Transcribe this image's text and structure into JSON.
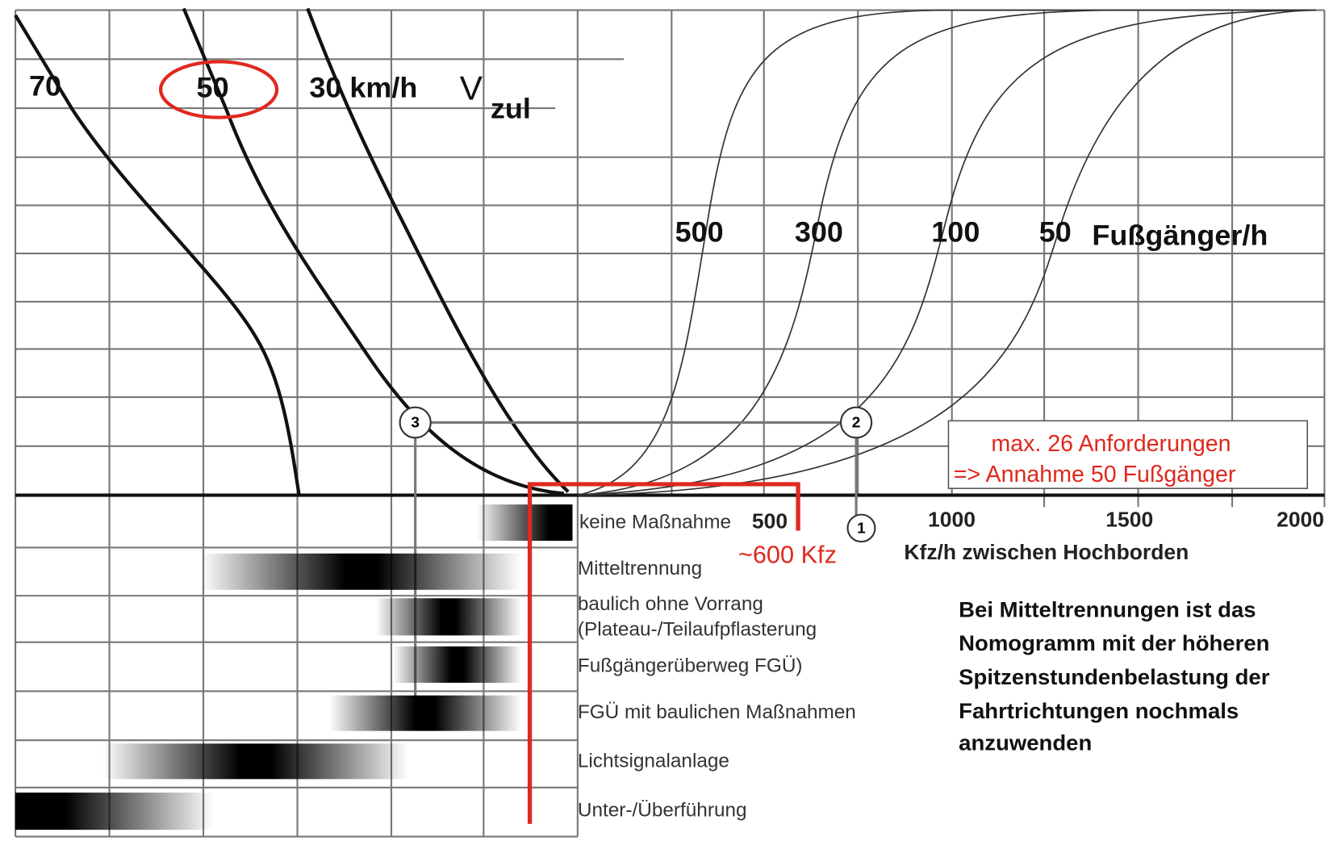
{
  "speed_curves": {
    "labels": [
      "70",
      "50",
      "30 km/h"
    ],
    "v_symbol": "V",
    "v_subscript": "zul"
  },
  "pedestrian_curves": {
    "labels": [
      "500",
      "300",
      "100",
      "50"
    ],
    "unit": "Fußgänger/h"
  },
  "annotation": [
    "max. 26 Anforderungen",
    "=> Annahme 50 Fußgänger"
  ],
  "x_axis": {
    "ticks": [
      "500",
      "1000",
      "1500",
      "2000"
    ],
    "label": "Kfz/h zwischen Hochborden"
  },
  "marker": "~600 Kfz",
  "points": [
    "1",
    "2",
    "3"
  ],
  "measures": [
    "keine Maßnahme",
    "Mitteltrennung",
    "baulich ohne Vorrang",
    "(Plateau-/Teilaufpflasterung",
    "Fußgängerüberweg FGÜ)",
    "FGÜ mit baulichen Maßnahmen",
    "Lichtsignalanlage",
    "Unter-/Überführung"
  ],
  "note": [
    "Bei Mitteltrennungen ist das",
    "Nomogramm mit der höheren",
    "Spitzenstundenbelastung der",
    "Fahrtrichtungen nochmals",
    "anzuwenden"
  ]
}
